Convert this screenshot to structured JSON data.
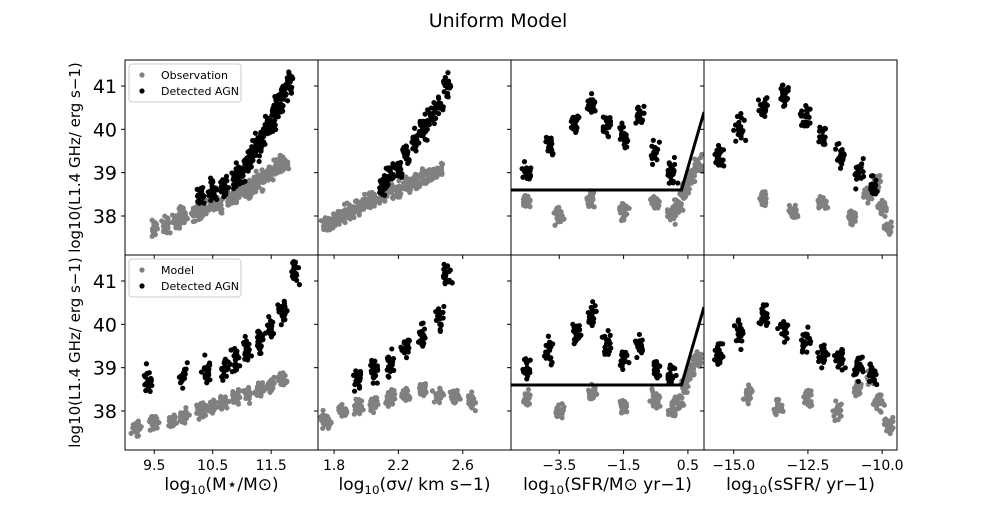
{
  "figure": {
    "title": "Uniform Model"
  },
  "colors": {
    "observation": "#808080",
    "model": "#808080",
    "agn": "#000000",
    "line": "#000000"
  },
  "chart_data": [
    {
      "type": "scatter",
      "row": 0,
      "col": 0,
      "xlim": [
        9.0,
        12.3
      ],
      "ylim": [
        37.1,
        41.6
      ],
      "xticks": [
        9.5,
        10.5,
        11.5
      ],
      "xtick_labels": [
        "9.5",
        "10.5",
        "11.5"
      ],
      "yticks": [
        38,
        39,
        40,
        41
      ],
      "ytick_labels": [
        "38",
        "39",
        "40",
        "41"
      ],
      "ylabel": "log10(L1.4 GHz/ erg s−1)",
      "legend": {
        "placement": "top-left",
        "entries": [
          {
            "label": "Observation",
            "color": "#808080"
          },
          {
            "label": "Detected AGN",
            "color": "#000000"
          }
        ]
      },
      "series": [
        {
          "name": "Observation",
          "color": "#808080",
          "x": [
            9.5,
            9.7,
            9.9,
            10.0,
            10.2,
            10.3,
            10.5,
            10.6,
            10.8,
            10.9,
            11.0,
            11.1,
            11.2,
            11.3,
            11.4,
            11.5,
            11.6,
            11.7
          ],
          "y": [
            37.7,
            37.8,
            37.9,
            38.0,
            38.1,
            38.2,
            38.3,
            38.3,
            38.4,
            38.5,
            38.6,
            38.6,
            38.7,
            38.8,
            38.9,
            39.0,
            39.1,
            39.2
          ]
        },
        {
          "name": "Detected AGN",
          "color": "#000000",
          "x": [
            10.3,
            10.5,
            10.7,
            10.9,
            11.0,
            11.1,
            11.2,
            11.3,
            11.4,
            11.5,
            11.6,
            11.7,
            11.8
          ],
          "y": [
            38.5,
            38.6,
            38.7,
            38.8,
            39.0,
            39.2,
            39.4,
            39.7,
            40.0,
            40.2,
            40.5,
            40.8,
            41.1
          ]
        }
      ]
    },
    {
      "type": "scatter",
      "row": 0,
      "col": 1,
      "xlim": [
        1.7,
        2.9
      ],
      "ylim": [
        37.1,
        41.6
      ],
      "xticks": [
        1.8,
        2.2,
        2.6
      ],
      "xtick_labels": [
        "1.8",
        "2.2",
        "2.6"
      ],
      "yticks": [
        38,
        39,
        40,
        41
      ],
      "ytick_labels": [
        "",
        "",
        "",
        ""
      ],
      "series": [
        {
          "name": "Observation",
          "color": "#808080",
          "x": [
            1.75,
            1.8,
            1.85,
            1.9,
            1.95,
            2.0,
            2.05,
            2.1,
            2.15,
            2.2,
            2.25,
            2.3,
            2.35,
            2.4,
            2.45
          ],
          "y": [
            37.8,
            37.9,
            38.0,
            38.1,
            38.2,
            38.3,
            38.4,
            38.5,
            38.6,
            38.6,
            38.7,
            38.8,
            38.9,
            39.0,
            39.1
          ]
        },
        {
          "name": "Detected AGN",
          "color": "#000000",
          "x": [
            2.1,
            2.15,
            2.2,
            2.25,
            2.3,
            2.35,
            2.4,
            2.45,
            2.5
          ],
          "y": [
            38.7,
            38.9,
            39.1,
            39.4,
            39.7,
            40.0,
            40.3,
            40.6,
            41.0
          ]
        }
      ]
    },
    {
      "type": "scatter",
      "row": 0,
      "col": 2,
      "xlim": [
        -5.0,
        1.0
      ],
      "ylim": [
        37.1,
        41.6
      ],
      "xticks": [
        -3.5,
        -1.5,
        0.5
      ],
      "xtick_labels": [
        "−3.5",
        "−1.5",
        "0.5"
      ],
      "yticks": [
        38,
        39,
        40,
        41
      ],
      "ytick_labels": [
        "",
        "",
        "",
        ""
      ],
      "line": {
        "x": [
          -5.0,
          0.3,
          1.0
        ],
        "y": [
          38.6,
          38.6,
          40.4
        ]
      },
      "series": [
        {
          "name": "Observation",
          "color": "#808080",
          "x": [
            -4.5,
            -3.5,
            -2.5,
            -1.5,
            -0.5,
            0.0,
            0.2,
            0.4,
            0.6,
            0.8
          ],
          "y": [
            38.3,
            38.0,
            38.4,
            38.1,
            38.3,
            38.0,
            38.2,
            38.6,
            38.9,
            39.2
          ]
        },
        {
          "name": "Detected AGN",
          "color": "#000000",
          "x": [
            -4.5,
            -3.8,
            -3.0,
            -2.5,
            -2.0,
            -1.5,
            -1.0,
            -0.5,
            0.0
          ],
          "y": [
            39.0,
            39.6,
            40.2,
            40.6,
            40.1,
            39.8,
            40.3,
            39.5,
            39.0
          ]
        }
      ]
    },
    {
      "type": "scatter",
      "row": 0,
      "col": 3,
      "xlim": [
        -16.0,
        -9.5
      ],
      "ylim": [
        37.1,
        41.6
      ],
      "xticks": [
        -15.0,
        -12.5,
        -10.0
      ],
      "xtick_labels": [
        "−15.0",
        "−12.5",
        "−10.0"
      ],
      "yticks": [
        38,
        39,
        40,
        41
      ],
      "ytick_labels": [
        "",
        "",
        "",
        ""
      ],
      "series": [
        {
          "name": "Observation",
          "color": "#808080",
          "x": [
            -14.0,
            -13.0,
            -12.0,
            -11.0,
            -10.5,
            -10.2,
            -10.0,
            -9.8
          ],
          "y": [
            38.4,
            38.1,
            38.3,
            38.0,
            38.5,
            38.8,
            38.2,
            37.7
          ]
        },
        {
          "name": "Detected AGN",
          "color": "#000000",
          "x": [
            -15.5,
            -14.8,
            -14.0,
            -13.3,
            -12.6,
            -12.0,
            -11.4,
            -10.8,
            -10.3
          ],
          "y": [
            39.4,
            40.0,
            40.5,
            40.8,
            40.3,
            39.8,
            39.4,
            39.0,
            38.7
          ]
        }
      ]
    },
    {
      "type": "scatter",
      "row": 1,
      "col": 0,
      "xlim": [
        9.0,
        12.3
      ],
      "ylim": [
        37.1,
        41.6
      ],
      "xticks": [
        9.5,
        10.5,
        11.5
      ],
      "xtick_labels": [
        "9.5",
        "10.5",
        "11.5"
      ],
      "yticks": [
        38,
        39,
        40,
        41
      ],
      "ytick_labels": [
        "38",
        "39",
        "40",
        "41"
      ],
      "xlabel": "log10(M⋆/M⊙)",
      "ylabel": "log10(L1.4 GHz/ erg s−1)",
      "legend": {
        "placement": "top-left",
        "entries": [
          {
            "label": "Model",
            "color": "#808080"
          },
          {
            "label": "Detected AGN",
            "color": "#000000"
          }
        ]
      },
      "series": [
        {
          "name": "Model",
          "color": "#808080",
          "x": [
            9.2,
            9.5,
            9.8,
            10.0,
            10.3,
            10.5,
            10.7,
            10.9,
            11.1,
            11.3,
            11.5,
            11.7
          ],
          "y": [
            37.6,
            37.7,
            37.8,
            37.9,
            38.0,
            38.1,
            38.2,
            38.3,
            38.4,
            38.5,
            38.6,
            38.7
          ]
        },
        {
          "name": "Detected AGN",
          "color": "#000000",
          "x": [
            9.4,
            10.0,
            10.4,
            10.7,
            10.9,
            11.1,
            11.3,
            11.5,
            11.7,
            11.9
          ],
          "y": [
            38.7,
            38.8,
            38.9,
            39.0,
            39.2,
            39.4,
            39.6,
            39.9,
            40.3,
            41.2
          ]
        }
      ]
    },
    {
      "type": "scatter",
      "row": 1,
      "col": 1,
      "xlim": [
        1.7,
        2.9
      ],
      "ylim": [
        37.1,
        41.6
      ],
      "xticks": [
        1.8,
        2.2,
        2.6
      ],
      "xtick_labels": [
        "1.8",
        "2.2",
        "2.6"
      ],
      "yticks": [
        38,
        39,
        40,
        41
      ],
      "ytick_labels": [
        "",
        "",
        "",
        ""
      ],
      "xlabel": "log10(σv/ km s−1)",
      "series": [
        {
          "name": "Model",
          "color": "#808080",
          "x": [
            1.75,
            1.85,
            1.95,
            2.05,
            2.15,
            2.25,
            2.35,
            2.45,
            2.55,
            2.65
          ],
          "y": [
            37.8,
            38.0,
            38.1,
            38.2,
            38.3,
            38.4,
            38.5,
            38.4,
            38.3,
            38.2
          ]
        },
        {
          "name": "Detected AGN",
          "color": "#000000",
          "x": [
            1.95,
            2.05,
            2.15,
            2.25,
            2.35,
            2.45,
            2.5
          ],
          "y": [
            38.7,
            38.9,
            39.1,
            39.4,
            39.7,
            40.2,
            41.2
          ]
        }
      ]
    },
    {
      "type": "scatter",
      "row": 1,
      "col": 2,
      "xlim": [
        -5.0,
        1.0
      ],
      "ylim": [
        37.1,
        41.6
      ],
      "xticks": [
        -3.5,
        -1.5,
        0.5
      ],
      "xtick_labels": [
        "−3.5",
        "−1.5",
        "0.5"
      ],
      "yticks": [
        38,
        39,
        40,
        41
      ],
      "ytick_labels": [
        "",
        "",
        "",
        ""
      ],
      "xlabel": "log10(SFR/M⊙ yr−1)",
      "line": {
        "x": [
          -5.0,
          0.3,
          1.0
        ],
        "y": [
          38.6,
          38.6,
          40.4
        ]
      },
      "series": [
        {
          "name": "Model",
          "color": "#808080",
          "x": [
            -4.5,
            -3.5,
            -2.5,
            -1.5,
            -0.5,
            0.0,
            0.2,
            0.4,
            0.6,
            0.8
          ],
          "y": [
            38.3,
            38.0,
            38.4,
            38.1,
            38.3,
            38.0,
            38.2,
            38.6,
            38.9,
            39.2
          ]
        },
        {
          "name": "Detected AGN",
          "color": "#000000",
          "x": [
            -4.5,
            -3.8,
            -3.0,
            -2.5,
            -2.0,
            -1.5,
            -1.0,
            -0.5,
            0.0
          ],
          "y": [
            39.0,
            39.4,
            39.8,
            40.2,
            39.6,
            39.2,
            39.5,
            39.0,
            38.8
          ]
        }
      ]
    },
    {
      "type": "scatter",
      "row": 1,
      "col": 3,
      "xlim": [
        -16.0,
        -9.5
      ],
      "ylim": [
        37.1,
        41.6
      ],
      "xticks": [
        -15.0,
        -12.5,
        -10.0
      ],
      "xtick_labels": [
        "−15.0",
        "−12.5",
        "−10.0"
      ],
      "yticks": [
        38,
        39,
        40,
        41
      ],
      "ytick_labels": [
        "",
        "",
        "",
        ""
      ],
      "xlabel": "log10(sSFR/ yr−1)",
      "series": [
        {
          "name": "Model",
          "color": "#808080",
          "x": [
            -14.5,
            -13.5,
            -12.5,
            -11.5,
            -10.8,
            -10.4,
            -10.1,
            -9.8
          ],
          "y": [
            38.4,
            38.1,
            38.3,
            38.0,
            38.5,
            38.8,
            38.2,
            37.7
          ]
        },
        {
          "name": "Detected AGN",
          "color": "#000000",
          "x": [
            -15.5,
            -14.8,
            -14.0,
            -13.3,
            -12.6,
            -12.0,
            -11.4,
            -10.8,
            -10.3
          ],
          "y": [
            39.3,
            39.8,
            40.2,
            39.9,
            39.6,
            39.3,
            39.2,
            39.0,
            38.8
          ]
        }
      ]
    }
  ]
}
